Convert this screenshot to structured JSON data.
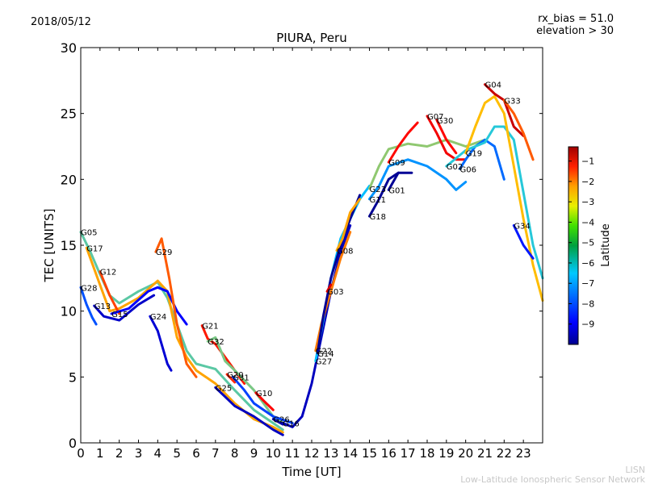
{
  "header": {
    "date": "2018/05/12",
    "title": "PIURA, Peru",
    "rx_bias": "rx_bias = 51.0",
    "elevation": "elevation > 30"
  },
  "watermark": {
    "line1": "LISN",
    "line2": "Low-Latitude Ionospheric Sensor Network"
  },
  "chart_data": {
    "type": "line",
    "title": "PIURA, Peru",
    "xlabel": "Time [UT]",
    "ylabel": "TEC [UNITS]",
    "xlim": [
      0,
      24
    ],
    "ylim": [
      0,
      30
    ],
    "xticks": [
      "0",
      "1",
      "2",
      "3",
      "4",
      "5",
      "6",
      "7",
      "8",
      "9",
      "10",
      "11",
      "12",
      "13",
      "14",
      "15",
      "16",
      "17",
      "18",
      "19",
      "20",
      "21",
      "22",
      "23"
    ],
    "yticks": [
      "0",
      "5",
      "10",
      "15",
      "20",
      "25",
      "30"
    ],
    "grid": false,
    "colorbar": {
      "label": "Latitude",
      "range": [
        -10,
        -0.3
      ],
      "ticks": [
        "-1",
        "-2",
        "-3",
        "-4",
        "-5",
        "-6",
        "-7",
        "-8",
        "-9"
      ],
      "colormap": "jet"
    },
    "series": [
      {
        "name": "G05",
        "lat": -5.5,
        "points": [
          [
            0,
            16
          ],
          [
            0.5,
            14.5
          ],
          [
            1,
            12.8
          ],
          [
            1.5,
            11.2
          ],
          [
            2,
            10.6
          ],
          [
            3,
            11.5
          ],
          [
            4,
            12.2
          ],
          [
            4.5,
            11
          ],
          [
            5,
            9
          ],
          [
            5.5,
            7
          ],
          [
            6,
            6
          ],
          [
            7,
            5.6
          ],
          [
            8,
            4
          ],
          [
            9,
            2.5
          ],
          [
            10,
            1.5
          ],
          [
            10.5,
            1
          ]
        ]
      },
      {
        "name": "G17",
        "lat": -3.5,
        "points": [
          [
            0.3,
            14.8
          ],
          [
            1,
            12
          ],
          [
            1.5,
            10
          ],
          [
            2,
            10.2
          ],
          [
            3,
            11
          ],
          [
            4,
            12.3
          ],
          [
            4.5,
            11.5
          ],
          [
            5,
            8
          ],
          [
            5.5,
            6.5
          ],
          [
            6,
            5.5
          ],
          [
            7,
            4.5
          ],
          [
            8,
            3
          ],
          [
            9,
            1.8
          ],
          [
            10,
            1.2
          ],
          [
            10.5,
            0.8
          ]
        ]
      },
      {
        "name": "G12",
        "lat": -2.3,
        "points": [
          [
            1,
            13
          ],
          [
            1.5,
            11.2
          ],
          [
            2,
            9.8
          ]
        ]
      },
      {
        "name": "G28",
        "lat": -7.8,
        "points": [
          [
            0,
            11.8
          ],
          [
            0.3,
            10.5
          ],
          [
            0.6,
            9.5
          ],
          [
            0.8,
            9
          ]
        ]
      },
      {
        "name": "G13",
        "lat": -9.3,
        "points": [
          [
            0.7,
            10.4
          ],
          [
            1.2,
            9.6
          ],
          [
            2,
            9.3
          ],
          [
            3,
            10.5
          ],
          [
            3.8,
            11.2
          ]
        ]
      },
      {
        "name": "G15",
        "lat": -8.8,
        "points": [
          [
            1.6,
            9.8
          ],
          [
            2.5,
            10.2
          ],
          [
            3.5,
            11.5
          ],
          [
            4,
            11.8
          ],
          [
            4.5,
            11.5
          ],
          [
            5,
            10
          ],
          [
            5.5,
            9
          ]
        ]
      },
      {
        "name": "G29",
        "lat": -2.6,
        "points": [
          [
            3.9,
            14.5
          ],
          [
            4.2,
            15.5
          ],
          [
            4.6,
            12.5
          ],
          [
            5,
            9
          ],
          [
            5.5,
            6
          ],
          [
            6,
            5
          ]
        ]
      },
      {
        "name": "G24",
        "lat": -9.2,
        "points": [
          [
            3.6,
            9.6
          ],
          [
            4,
            8.5
          ],
          [
            4.5,
            6
          ],
          [
            4.7,
            5.5
          ]
        ]
      },
      {
        "name": "G21",
        "lat": -1.8,
        "points": [
          [
            6.3,
            8.9
          ],
          [
            6.6,
            7.9
          ],
          [
            7,
            7.5
          ],
          [
            7.5,
            6.5
          ],
          [
            8,
            5.5
          ],
          [
            8.5,
            4.5
          ]
        ]
      },
      {
        "name": "G32",
        "lat": -5.2,
        "points": [
          [
            6.6,
            7.7
          ],
          [
            7,
            8
          ],
          [
            7.5,
            6.2
          ],
          [
            8,
            5.5
          ],
          [
            9,
            4
          ],
          [
            10,
            2
          ],
          [
            10.5,
            1.5
          ]
        ]
      },
      {
        "name": "G20",
        "lat": -2.0,
        "points": [
          [
            7.6,
            5.2
          ],
          [
            8,
            4.6
          ]
        ]
      },
      {
        "name": "G25",
        "lat": -9.4,
        "points": [
          [
            7,
            4.2
          ],
          [
            7.5,
            3.5
          ],
          [
            8,
            2.8
          ],
          [
            9,
            2
          ],
          [
            10,
            1
          ],
          [
            10.5,
            0.6
          ]
        ]
      },
      {
        "name": "G31",
        "lat": -8.0,
        "points": [
          [
            7.9,
            5
          ],
          [
            8.5,
            4
          ],
          [
            9,
            3
          ],
          [
            10,
            2
          ],
          [
            11,
            1.5
          ]
        ]
      },
      {
        "name": "G10",
        "lat": -1.5,
        "points": [
          [
            9.1,
            3.8
          ],
          [
            9.5,
            3.2
          ],
          [
            10,
            2.5
          ]
        ]
      },
      {
        "name": "G26",
        "lat": -9.6,
        "points": [
          [
            10,
            1.8
          ],
          [
            10.5,
            1.4
          ]
        ]
      },
      {
        "name": "G16",
        "lat": -9.4,
        "points": [
          [
            10.5,
            1.5
          ],
          [
            11,
            1.2
          ],
          [
            11.5,
            2
          ],
          [
            12,
            4.5
          ],
          [
            12.5,
            8
          ],
          [
            13,
            11.5
          ],
          [
            13.5,
            14.5
          ],
          [
            14,
            16.5
          ]
        ]
      },
      {
        "name": "G27",
        "lat": -6.5,
        "points": [
          [
            12.2,
            6.2
          ],
          [
            12.5,
            8.5
          ],
          [
            13,
            12.5
          ],
          [
            13.5,
            15.5
          ],
          [
            14,
            17
          ],
          [
            14.5,
            18.5
          ],
          [
            15,
            19.5
          ]
        ]
      },
      {
        "name": "G22",
        "lat": -3.0,
        "points": [
          [
            12.2,
            7
          ],
          [
            12.5,
            9
          ],
          [
            13,
            11.5
          ],
          [
            13.5,
            14
          ],
          [
            14,
            16
          ]
        ]
      },
      {
        "name": "G14",
        "lat": -9.8,
        "points": [
          [
            12.3,
            6.8
          ],
          [
            12.6,
            9.6
          ],
          [
            13,
            12.5
          ],
          [
            13.5,
            15
          ],
          [
            14,
            17
          ],
          [
            14.5,
            18.8
          ]
        ]
      },
      {
        "name": "G08",
        "lat": -3.5,
        "points": [
          [
            13.3,
            14.6
          ],
          [
            13.6,
            15.5
          ],
          [
            14,
            17.5
          ],
          [
            14.5,
            18.5
          ]
        ]
      },
      {
        "name": "G03",
        "lat": -1.2,
        "points": [
          [
            12.8,
            11.5
          ],
          [
            13,
            12
          ]
        ]
      },
      {
        "name": "G18",
        "lat": -9.8,
        "points": [
          [
            15,
            17.2
          ],
          [
            15.5,
            18.5
          ],
          [
            16,
            20
          ],
          [
            16.5,
            20.5
          ]
        ]
      },
      {
        "name": "G11",
        "lat": -7.0,
        "points": [
          [
            15,
            18.5
          ],
          [
            15.5,
            19.5
          ],
          [
            16,
            21
          ],
          [
            17,
            21.5
          ],
          [
            18,
            21
          ],
          [
            19,
            20
          ],
          [
            19.5,
            19.2
          ],
          [
            20,
            19.8
          ]
        ]
      },
      {
        "name": "G23",
        "lat": -5.0,
        "points": [
          [
            15,
            19.3
          ],
          [
            15.5,
            21
          ],
          [
            16,
            22.3
          ],
          [
            17,
            22.7
          ],
          [
            18,
            22.5
          ],
          [
            19,
            23
          ],
          [
            20,
            22.5
          ],
          [
            21,
            23
          ]
        ]
      },
      {
        "name": "G01",
        "lat": -9.8,
        "points": [
          [
            16,
            19.2
          ],
          [
            16.5,
            20.5
          ],
          [
            17.2,
            20.5
          ]
        ]
      },
      {
        "name": "G09",
        "lat": -1.6,
        "points": [
          [
            16,
            21.3
          ],
          [
            16.5,
            22.5
          ],
          [
            17,
            23.5
          ],
          [
            17.5,
            24.3
          ]
        ]
      },
      {
        "name": "G07",
        "lat": -1.4,
        "points": [
          [
            18,
            24.8
          ],
          [
            18.5,
            23.5
          ],
          [
            19,
            22
          ],
          [
            19.5,
            21.5
          ],
          [
            20,
            21.5
          ]
        ]
      },
      {
        "name": "G30",
        "lat": -1.6,
        "points": [
          [
            18.5,
            24.5
          ],
          [
            19,
            23
          ],
          [
            19.5,
            22
          ]
        ]
      },
      {
        "name": "G06",
        "lat": -7.5,
        "points": [
          [
            19.7,
            20.8
          ],
          [
            20,
            21.5
          ],
          [
            20.5,
            22.5
          ],
          [
            21,
            23
          ],
          [
            21.5,
            22.5
          ],
          [
            22,
            20
          ]
        ]
      },
      {
        "name": "G02",
        "lat": -6.0,
        "points": [
          [
            19,
            21
          ],
          [
            20,
            22.2
          ],
          [
            21,
            22.8
          ],
          [
            21.5,
            24
          ],
          [
            22,
            24
          ],
          [
            22.5,
            23
          ],
          [
            23,
            19
          ],
          [
            23.5,
            15
          ],
          [
            24,
            12.5
          ]
        ]
      },
      {
        "name": "G19",
        "lat": -3.8,
        "points": [
          [
            20,
            22
          ],
          [
            20.5,
            24
          ],
          [
            21,
            25.8
          ],
          [
            21.5,
            26.3
          ],
          [
            22,
            25
          ],
          [
            22.5,
            21
          ],
          [
            23,
            17
          ],
          [
            23.5,
            13.5
          ],
          [
            24,
            10.8
          ]
        ]
      },
      {
        "name": "G04",
        "lat": -1.0,
        "points": [
          [
            21,
            27.2
          ],
          [
            21.5,
            26.5
          ],
          [
            22,
            26
          ],
          [
            22.5,
            24
          ],
          [
            23,
            23.3
          ]
        ]
      },
      {
        "name": "G33",
        "lat": -2.6,
        "points": [
          [
            22,
            26
          ],
          [
            22.5,
            25
          ],
          [
            23,
            23.5
          ],
          [
            23.5,
            21.5
          ]
        ]
      },
      {
        "name": "G34",
        "lat": -8.5,
        "points": [
          [
            22.5,
            16.5
          ],
          [
            23,
            15
          ],
          [
            23.5,
            14
          ]
        ]
      }
    ]
  }
}
